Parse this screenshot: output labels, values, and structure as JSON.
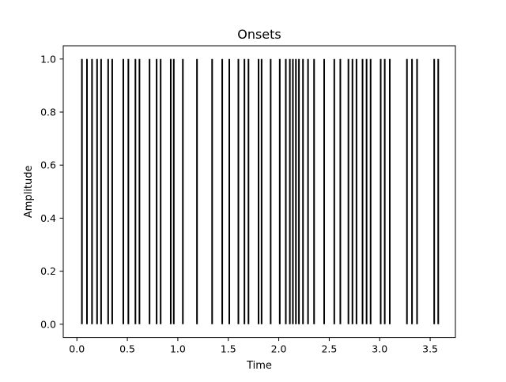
{
  "chart_data": {
    "type": "event-lines",
    "title": "Onsets",
    "xlabel": "Time",
    "ylabel": "Amplitude",
    "xlim": [
      -0.135,
      3.75
    ],
    "ylim": [
      -0.05,
      1.05
    ],
    "xticks": [
      0.0,
      0.5,
      1.0,
      1.5,
      2.0,
      2.5,
      3.0,
      3.5
    ],
    "xtick_labels": [
      "0.0",
      "0.5",
      "1.0",
      "1.5",
      "2.0",
      "2.5",
      "3.0",
      "3.5"
    ],
    "yticks": [
      0.0,
      0.2,
      0.4,
      0.6,
      0.8,
      1.0
    ],
    "ytick_labels": [
      "0.0",
      "0.2",
      "0.4",
      "0.6",
      "0.8",
      "1.0"
    ],
    "ymin": 0.0,
    "ymax": 1.0,
    "line_color": "#000000",
    "grid": false,
    "onsets": [
      0.05,
      0.1,
      0.15,
      0.2,
      0.24,
      0.31,
      0.35,
      0.46,
      0.51,
      0.58,
      0.62,
      0.72,
      0.79,
      0.83,
      0.93,
      0.96,
      1.05,
      1.19,
      1.34,
      1.44,
      1.51,
      1.6,
      1.66,
      1.7,
      1.8,
      1.83,
      1.92,
      2.01,
      2.07,
      2.11,
      2.14,
      2.17,
      2.2,
      2.24,
      2.29,
      2.35,
      2.45,
      2.55,
      2.61,
      2.69,
      2.73,
      2.77,
      2.83,
      2.87,
      2.91,
      3.01,
      3.05,
      3.1,
      3.27,
      3.32,
      3.37,
      3.54,
      3.58
    ]
  }
}
